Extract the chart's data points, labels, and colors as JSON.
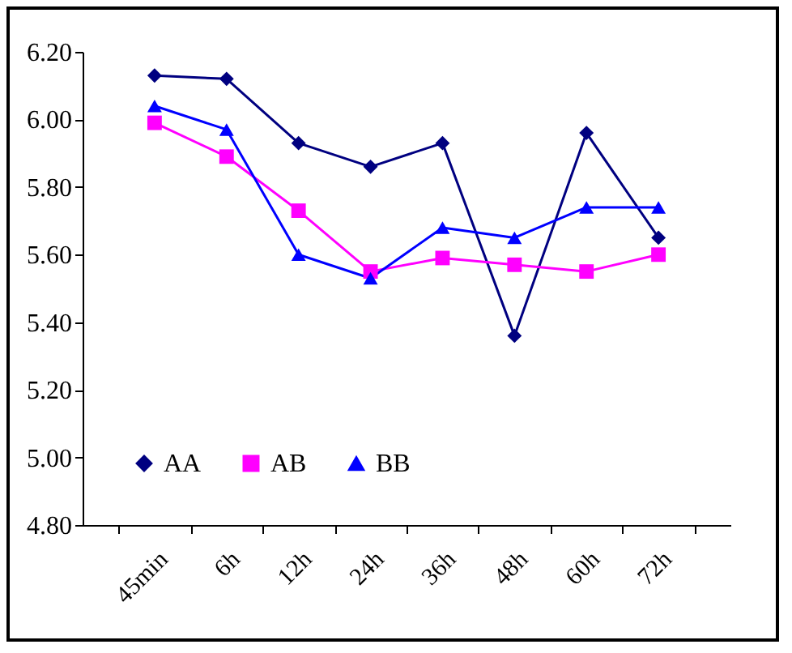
{
  "chart_data": {
    "type": "line",
    "categories": [
      "45min",
      "6h",
      "12h",
      "24h",
      "36h",
      "48h",
      "60h",
      "72h"
    ],
    "series": [
      {
        "name": "AA",
        "color": "#000080",
        "marker": "diamond",
        "values": [
          6.13,
          6.12,
          5.93,
          5.86,
          5.93,
          5.36,
          5.96,
          5.65
        ]
      },
      {
        "name": "AB",
        "color": "#ff00ff",
        "marker": "square",
        "values": [
          5.99,
          5.89,
          5.73,
          5.55,
          5.59,
          5.57,
          5.55,
          5.6
        ]
      },
      {
        "name": "BB",
        "color": "#0000ff",
        "marker": "triangle",
        "values": [
          6.04,
          5.97,
          5.6,
          5.53,
          5.68,
          5.65,
          5.74,
          5.74
        ]
      }
    ],
    "ylim": [
      4.8,
      6.2
    ],
    "yticks": [
      {
        "value": 4.8,
        "label": "4.80"
      },
      {
        "value": 5.0,
        "label": "5.00"
      },
      {
        "value": 5.2,
        "label": "5.20"
      },
      {
        "value": 5.4,
        "label": "5.40"
      },
      {
        "value": 5.6,
        "label": "5.60"
      },
      {
        "value": 5.8,
        "label": "5.80"
      },
      {
        "value": 6.0,
        "label": "6.00"
      },
      {
        "value": 6.2,
        "label": "6.20"
      }
    ],
    "grid": false,
    "legend": "bottom left",
    "line_style": "solid"
  }
}
